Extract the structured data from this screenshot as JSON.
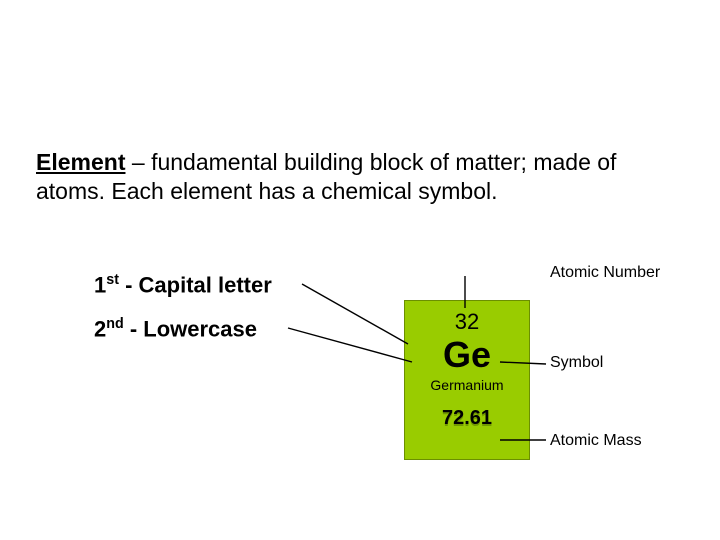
{
  "definition": {
    "term": "Element",
    "sep": " – ",
    "body_a": "fundamental building block of matter;    ",
    "body_b": "made of atoms.  Each element has a chemical symbol."
  },
  "rules": {
    "first": {
      "ord": "1",
      "sup": "st",
      "text": " - Capital letter"
    },
    "second": {
      "ord": "2",
      "sup": "nd",
      "text": " - Lowercase"
    }
  },
  "element_tile": {
    "atomic_number": "32",
    "symbol": "Ge",
    "name": "Germanium",
    "mass": "72.61",
    "tile_bg": "#99cc00",
    "tile_border": "#6b8f00"
  },
  "labels": {
    "atomic_number": "Atomic Number",
    "symbol": "Symbol",
    "atomic_mass": "Atomic Mass"
  },
  "lines": {
    "color": "#000000",
    "width": 1.4,
    "paths": [
      "M 302 284 L 408 344",
      "M 288 328 L 412 362",
      "M 465 276 L 465 308",
      "M 546 364 L 500 362",
      "M 546 440 L 500 440"
    ]
  }
}
